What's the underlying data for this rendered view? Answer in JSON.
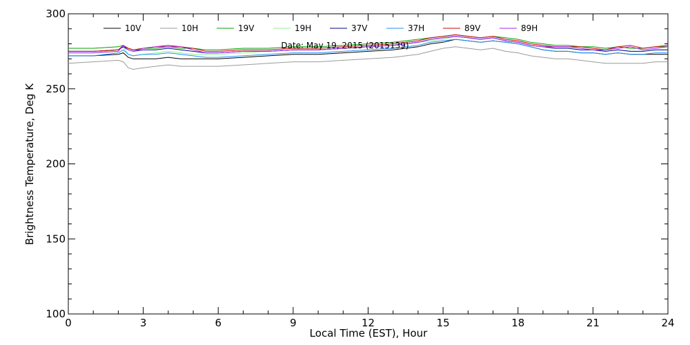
{
  "chart_data": {
    "type": "line",
    "title": "",
    "annotation": "Date: May 19, 2015 (2015139)",
    "xlabel": "Local Time (EST), Hour",
    "ylabel": "Brightness Temperature, Deg K",
    "xlim": [
      0,
      24
    ],
    "ylim": [
      100,
      300
    ],
    "xticks": [
      0,
      3,
      6,
      9,
      12,
      15,
      18,
      21,
      24
    ],
    "yticks": [
      100,
      150,
      200,
      250,
      300
    ],
    "xtick_labels": [
      "0",
      "3",
      "6",
      "9",
      "12",
      "15",
      "18",
      "21",
      "24"
    ],
    "ytick_labels": [
      "100",
      "150",
      "200",
      "250",
      "300"
    ],
    "grid": false,
    "legend_position": "top",
    "x": [
      0,
      1,
      2,
      2.2,
      2.4,
      2.6,
      3,
      3.5,
      4,
      4.5,
      5,
      5.5,
      6,
      7,
      8,
      9,
      10,
      11,
      12,
      13,
      14,
      14.5,
      15,
      15.5,
      16,
      16.5,
      17,
      17.5,
      18,
      18.5,
      19,
      19.5,
      20,
      20.5,
      21,
      21.5,
      22,
      22.5,
      23,
      23.5,
      24
    ],
    "series": [
      {
        "name": "10V",
        "color": "#000000",
        "values": [
          272,
          272,
          273,
          274,
          271,
          270,
          270,
          270,
          271,
          270,
          270,
          270,
          270,
          271,
          272,
          273,
          273,
          274,
          275,
          276,
          278,
          280,
          281,
          283,
          282,
          281,
          282,
          281,
          280,
          278,
          276,
          275,
          275,
          274,
          274,
          273,
          274,
          273,
          273,
          273,
          273
        ]
      },
      {
        "name": "10H",
        "color": "#999999",
        "values": [
          267,
          268,
          269,
          268,
          264,
          263,
          264,
          265,
          266,
          265,
          265,
          265,
          265,
          266,
          267,
          268,
          268,
          269,
          270,
          271,
          273,
          275,
          277,
          278,
          277,
          276,
          277,
          275,
          274,
          272,
          271,
          270,
          270,
          269,
          268,
          267,
          267,
          267,
          267,
          268,
          268
        ]
      },
      {
        "name": "19V",
        "color": "#00a000",
        "values": [
          277,
          277,
          278,
          279,
          277,
          276,
          277,
          277,
          278,
          277,
          277,
          276,
          276,
          277,
          277,
          278,
          278,
          279,
          280,
          281,
          283,
          284,
          285,
          286,
          285,
          284,
          285,
          284,
          283,
          281,
          280,
          279,
          279,
          278,
          278,
          277,
          278,
          277,
          277,
          278,
          278
        ]
      },
      {
        "name": "19H",
        "color": "#90ee90",
        "values": [
          274,
          274,
          276,
          278,
          273,
          272,
          273,
          274,
          275,
          274,
          273,
          273,
          273,
          274,
          275,
          276,
          276,
          277,
          278,
          279,
          281,
          282,
          283,
          285,
          284,
          283,
          284,
          282,
          281,
          279,
          278,
          277,
          277,
          276,
          276,
          275,
          276,
          275,
          275,
          276,
          276
        ]
      },
      {
        "name": "37V",
        "color": "#00008b",
        "values": [
          275,
          275,
          276,
          278,
          276,
          275,
          276,
          276,
          277,
          276,
          275,
          274,
          274,
          275,
          275,
          276,
          276,
          277,
          278,
          279,
          281,
          283,
          284,
          285,
          284,
          283,
          284,
          282,
          281,
          279,
          278,
          277,
          277,
          276,
          276,
          275,
          276,
          275,
          275,
          276,
          276
        ]
      },
      {
        "name": "37H",
        "color": "#1e90ff",
        "values": [
          272,
          272,
          274,
          276,
          273,
          272,
          273,
          273,
          274,
          273,
          272,
          271,
          271,
          272,
          273,
          274,
          274,
          275,
          276,
          277,
          279,
          281,
          282,
          283,
          282,
          281,
          282,
          281,
          280,
          278,
          276,
          275,
          275,
          274,
          274,
          273,
          274,
          273,
          273,
          274,
          274
        ]
      },
      {
        "name": "89V",
        "color": "#cc0000",
        "values": [
          275,
          275,
          276,
          279,
          277,
          276,
          277,
          278,
          279,
          278,
          277,
          275,
          275,
          276,
          276,
          277,
          277,
          278,
          279,
          280,
          282,
          284,
          285,
          286,
          285,
          284,
          285,
          283,
          282,
          280,
          279,
          278,
          278,
          278,
          277,
          276,
          278,
          279,
          277,
          278,
          279
        ]
      },
      {
        "name": "89H",
        "color": "#a020f0",
        "values": [
          274,
          274,
          275,
          279,
          276,
          275,
          277,
          278,
          278,
          278,
          276,
          274,
          274,
          275,
          275,
          276,
          276,
          277,
          278,
          279,
          281,
          283,
          284,
          285,
          284,
          283,
          284,
          282,
          281,
          279,
          278,
          278,
          278,
          277,
          276,
          276,
          277,
          278,
          276,
          277,
          278
        ]
      }
    ]
  }
}
